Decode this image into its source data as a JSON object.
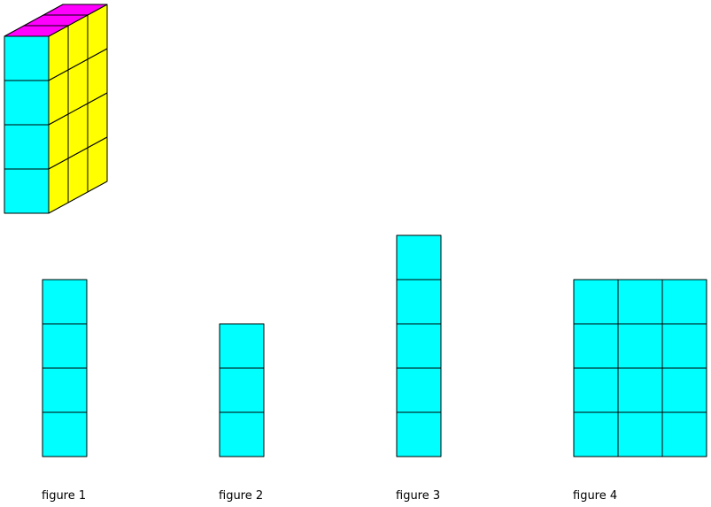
{
  "colors": {
    "front": "#00ffff",
    "side": "#ffff00",
    "top": "#ff00ff",
    "stroke": "#000000"
  },
  "solid": {
    "description_counts": {
      "rows": 4,
      "columns_deep": 3,
      "columns_wide": 1
    }
  },
  "figures": [
    {
      "caption": "figure 1",
      "columns": 1,
      "rows": 4
    },
    {
      "caption": "figure 2",
      "columns": 1,
      "rows": 3
    },
    {
      "caption": "figure 3",
      "columns": 1,
      "rows": 5
    },
    {
      "caption": "figure 4",
      "columns": 3,
      "rows": 4
    }
  ]
}
